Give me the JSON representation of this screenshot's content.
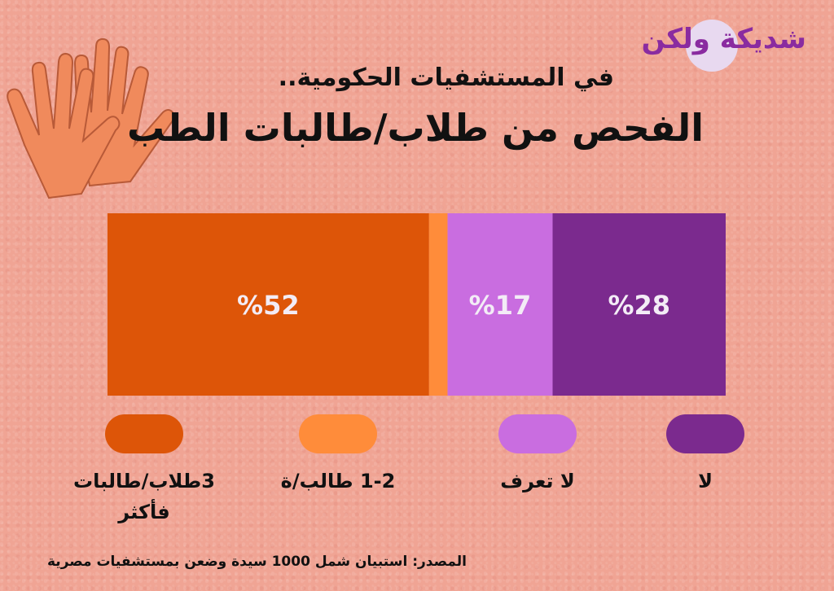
{
  "header": {
    "logo_text": "شديكة ولكن",
    "title_line1": "في المستشفيات الحكومية..",
    "title_line2": "الفحص من طلاب/طالبات الطب"
  },
  "chart_data": {
    "type": "bar",
    "orientation": "horizontal-stacked",
    "series": [
      {
        "name": "لا",
        "value": 28,
        "label": "%28",
        "color": "#7b2a8e"
      },
      {
        "name": "لا تعرف",
        "value": 17,
        "label": "%17",
        "color": "#c96de0"
      },
      {
        "name": "1-2 طالب/ة",
        "value": 3,
        "label": "",
        "color": "#ff8c3a"
      },
      {
        "name": "3طلاب/طالبات فأكثر",
        "value": 52,
        "label": "%52",
        "color": "#dd5508"
      }
    ],
    "legend_placement": "bottom"
  },
  "legend": {
    "items": [
      {
        "label": "لا"
      },
      {
        "label": "لا تعرف"
      },
      {
        "label": "1-2 طالب/ة"
      },
      {
        "label": "3طلاب/طالبات فأكثر"
      }
    ]
  },
  "footer": {
    "source": "المصدر: استبيان شمل 1000 سيدة وضعن بمستشفيات مصرية"
  }
}
